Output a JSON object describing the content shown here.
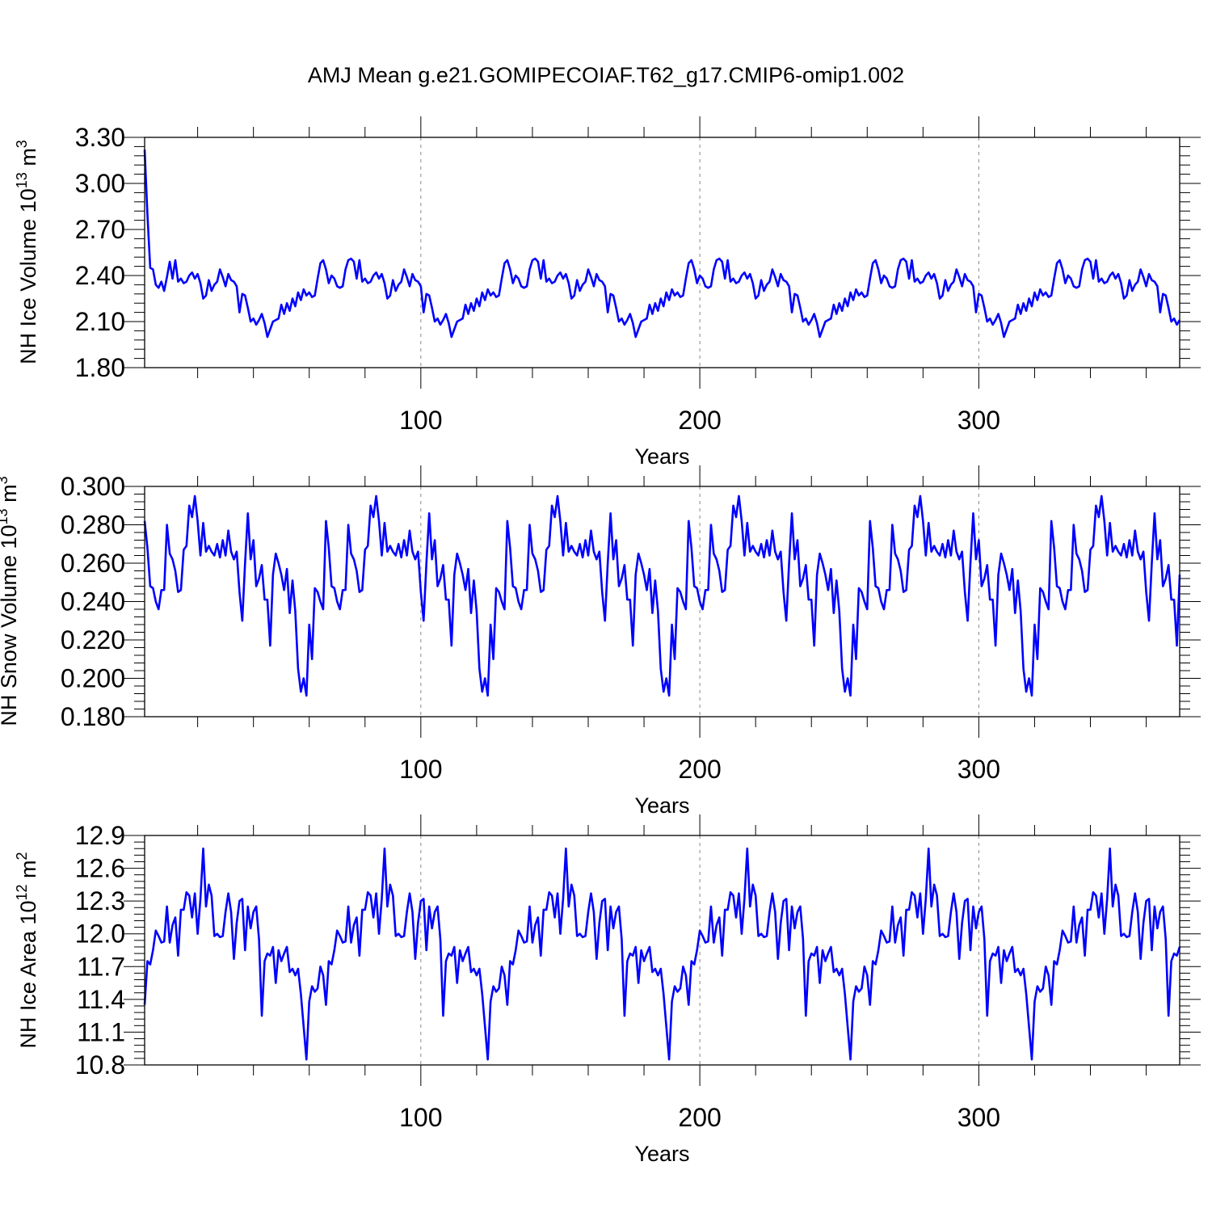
{
  "title": "AMJ Mean g.e21.GOMIPECOIAF.T62_g17.CMIP6-omip1.002",
  "line_color": "#0000ff",
  "chart_data": [
    {
      "type": "line",
      "name": "ice-volume",
      "ylabel": {
        "main": "NH Ice Volume 10",
        "exp": "13",
        "unit": " m",
        "unit_exp": "3"
      },
      "xlabel": "Years",
      "xlim": [
        1,
        372
      ],
      "ylim": [
        1.8,
        3.3
      ],
      "yticks": [
        "1.80",
        "2.10",
        "2.40",
        "2.70",
        "3.00",
        "3.30"
      ],
      "xticks": [
        "100",
        "200",
        "300"
      ],
      "gridlines_x": [
        100,
        200,
        300
      ],
      "base_cycle": [
        2.35,
        2.4,
        2.38,
        2.33,
        2.32,
        2.33,
        2.44,
        2.5,
        2.51,
        2.49,
        2.38,
        2.5,
        2.36,
        2.38,
        2.35,
        2.36,
        2.4,
        2.42,
        2.38,
        2.41,
        2.35,
        2.25,
        2.27,
        2.37,
        2.3,
        2.34,
        2.36,
        2.44,
        2.39,
        2.33,
        2.41,
        2.37,
        2.36,
        2.33,
        2.16,
        2.28,
        2.27,
        2.19,
        2.1,
        2.12,
        2.08,
        2.11,
        2.15,
        2.09,
        2.0,
        2.05,
        2.1,
        2.11,
        2.12,
        2.21,
        2.15,
        2.22,
        2.17,
        2.25,
        2.2,
        2.29,
        2.24,
        2.31,
        2.27,
        2.29,
        2.26,
        2.27,
        2.38,
        2.48,
        2.5,
        2.44
      ],
      "start_values": [
        3.22,
        2.8,
        2.45,
        2.44,
        2.34,
        2.32,
        2.36,
        2.3,
        2.39
      ]
    },
    {
      "type": "line",
      "name": "snow-volume",
      "ylabel": {
        "main": "NH Snow Volume 10",
        "exp": "13",
        "unit": " m",
        "unit_exp": "3"
      },
      "xlabel": "Years",
      "xlim": [
        1,
        372
      ],
      "ylim": [
        0.18,
        0.3
      ],
      "yticks": [
        "0.180",
        "0.200",
        "0.220",
        "0.240",
        "0.260",
        "0.280",
        "0.300"
      ],
      "xticks": [
        "100",
        "200",
        "300"
      ],
      "gridlines_x": [
        100,
        200,
        300
      ],
      "base_cycle": [
        0.282,
        0.268,
        0.248,
        0.247,
        0.24,
        0.236,
        0.246,
        0.246,
        0.28,
        0.265,
        0.262,
        0.256,
        0.245,
        0.246,
        0.267,
        0.269,
        0.29,
        0.284,
        0.295,
        0.282,
        0.264,
        0.281,
        0.266,
        0.269,
        0.266,
        0.264,
        0.27,
        0.263,
        0.272,
        0.264,
        0.277,
        0.266,
        0.262,
        0.266,
        0.245,
        0.23,
        0.26,
        0.286,
        0.262,
        0.272,
        0.248,
        0.252,
        0.259,
        0.241,
        0.241,
        0.217,
        0.254,
        0.265,
        0.26,
        0.254,
        0.246,
        0.257,
        0.234,
        0.251,
        0.235,
        0.205,
        0.193,
        0.2,
        0.191,
        0.228,
        0.21,
        0.247,
        0.245,
        0.24,
        0.236
      ],
      "start_values": [
        0.282,
        0.268,
        0.248
      ]
    },
    {
      "type": "line",
      "name": "ice-area",
      "ylabel": {
        "main": "NH Ice Area 10",
        "exp": "12",
        "unit": " m",
        "unit_exp": "2"
      },
      "xlabel": "Years",
      "xlim": [
        1,
        372
      ],
      "ylim": [
        10.8,
        12.9
      ],
      "yticks": [
        "10.8",
        "11.1",
        "11.4",
        "11.7",
        "12.0",
        "12.3",
        "12.6",
        "12.9"
      ],
      "xticks": [
        "100",
        "200",
        "300"
      ],
      "gridlines_x": [
        100,
        200,
        300
      ],
      "base_cycle": [
        11.35,
        11.75,
        11.72,
        11.85,
        12.03,
        11.98,
        11.92,
        11.93,
        12.25,
        11.92,
        12.08,
        12.15,
        11.8,
        12.22,
        12.22,
        12.38,
        12.35,
        12.15,
        12.37,
        12.0,
        12.32,
        12.78,
        12.25,
        12.45,
        12.35,
        11.98,
        12.0,
        11.97,
        11.98,
        12.2,
        12.37,
        12.2,
        11.77,
        12.1,
        12.3,
        12.32,
        11.85,
        12.25,
        12.05,
        12.2,
        12.25,
        11.95,
        11.25,
        11.75,
        11.82,
        11.8,
        11.88,
        11.55,
        11.85,
        11.75,
        11.82,
        11.88,
        11.65,
        11.68,
        11.62,
        11.68,
        11.45,
        11.15,
        10.85,
        11.38,
        11.52,
        11.47,
        11.5,
        11.7,
        11.62
      ],
      "start_values": [
        11.35
      ]
    }
  ]
}
